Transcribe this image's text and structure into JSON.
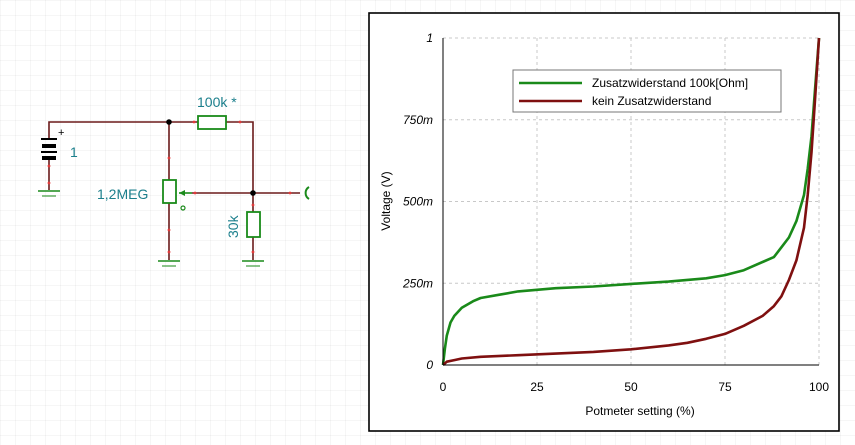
{
  "schematic": {
    "battery_label": "1",
    "pot_label": "1,2MEG",
    "series_resistor_label": "100k *",
    "shunt_resistor_label": "30k"
  },
  "colors": {
    "wire": "#6b1a1a",
    "component": "#1a8a1a",
    "label": "#1b7f8c",
    "series_with": "#1a8a1a",
    "series_without": "#7f1010"
  },
  "chart_data": {
    "type": "line",
    "title": "",
    "xlabel": "Potmeter setting (%)",
    "ylabel": "Voltage (V)",
    "xlim": [
      0,
      100
    ],
    "ylim": [
      0,
      1
    ],
    "x_ticks": [
      0,
      25,
      50,
      75,
      100
    ],
    "x_tick_labels": [
      "0",
      "25",
      "50",
      "75",
      "100"
    ],
    "y_ticks": [
      0,
      0.25,
      0.5,
      0.75,
      1
    ],
    "y_tick_labels": [
      "0",
      "250m",
      "500m",
      "750m",
      "1"
    ],
    "grid": true,
    "legend_position": "top-right",
    "series": [
      {
        "name": "Zusatzwiderstand  100k[Ohm]",
        "color": "#1a8a1a",
        "points": [
          [
            0,
            0
          ],
          [
            0.5,
            0.05
          ],
          [
            1,
            0.09
          ],
          [
            2,
            0.13
          ],
          [
            3,
            0.15
          ],
          [
            5,
            0.175
          ],
          [
            8,
            0.195
          ],
          [
            10,
            0.205
          ],
          [
            15,
            0.215
          ],
          [
            20,
            0.225
          ],
          [
            25,
            0.23
          ],
          [
            30,
            0.235
          ],
          [
            40,
            0.24
          ],
          [
            50,
            0.248
          ],
          [
            60,
            0.255
          ],
          [
            70,
            0.265
          ],
          [
            75,
            0.275
          ],
          [
            80,
            0.29
          ],
          [
            85,
            0.315
          ],
          [
            88,
            0.33
          ],
          [
            90,
            0.36
          ],
          [
            92,
            0.39
          ],
          [
            94,
            0.44
          ],
          [
            96,
            0.52
          ],
          [
            97,
            0.6
          ],
          [
            98,
            0.7
          ],
          [
            99,
            0.85
          ],
          [
            100,
            1.0
          ]
        ]
      },
      {
        "name": "kein Zusatzwiderstand",
        "color": "#7f1010",
        "points": [
          [
            0,
            0
          ],
          [
            1,
            0.01
          ],
          [
            3,
            0.015
          ],
          [
            5,
            0.02
          ],
          [
            10,
            0.025
          ],
          [
            20,
            0.03
          ],
          [
            30,
            0.035
          ],
          [
            40,
            0.04
          ],
          [
            50,
            0.048
          ],
          [
            60,
            0.06
          ],
          [
            65,
            0.068
          ],
          [
            70,
            0.08
          ],
          [
            75,
            0.095
          ],
          [
            80,
            0.12
          ],
          [
            85,
            0.15
          ],
          [
            88,
            0.18
          ],
          [
            90,
            0.21
          ],
          [
            92,
            0.26
          ],
          [
            94,
            0.32
          ],
          [
            96,
            0.42
          ],
          [
            97,
            0.52
          ],
          [
            98,
            0.65
          ],
          [
            99,
            0.82
          ],
          [
            100,
            1.0
          ]
        ]
      }
    ]
  }
}
